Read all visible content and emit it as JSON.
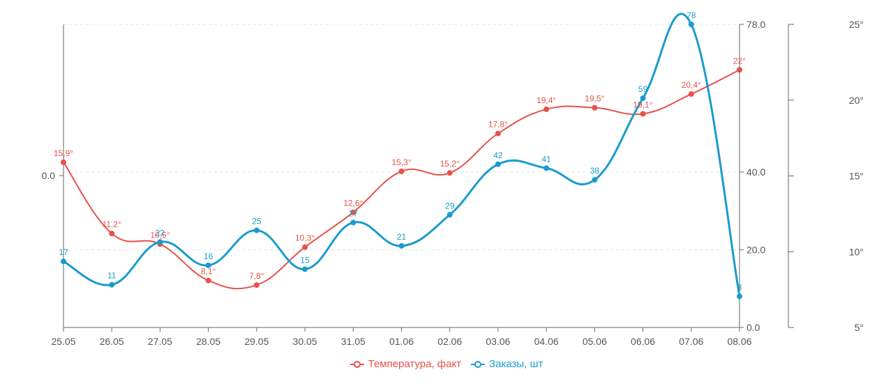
{
  "chart_data": {
    "type": "line",
    "categories": [
      "25.05",
      "26.05",
      "27.05",
      "28.05",
      "29.05",
      "30.05",
      "31.05",
      "01.06",
      "02.06",
      "03.06",
      "04.06",
      "05.06",
      "06.06",
      "07.06",
      "08.06"
    ],
    "series": [
      {
        "name": "Температура, факт",
        "color": "#e8504a",
        "axis": "temperature",
        "values": [
          15.9,
          11.2,
          10.5,
          8.1,
          7.8,
          10.3,
          12.6,
          15.3,
          15.2,
          17.8,
          19.4,
          19.5,
          19.1,
          20.4,
          22
        ],
        "labels": [
          "15,9°",
          "11,2°",
          "10,5°",
          "8,1°",
          "7,8°",
          "10,3°",
          "12,6°",
          "15,3°",
          "15,2°",
          "17,8°",
          "19,4°",
          "19,5°",
          "19,1°",
          "20,4°",
          "22°"
        ]
      },
      {
        "name": "Заказы, шт",
        "color": "#1a9bcf",
        "axis": "orders",
        "values": [
          17,
          11,
          22,
          16,
          25,
          15,
          27,
          21,
          29,
          42,
          41,
          38,
          59,
          78,
          8
        ],
        "labels": [
          "17",
          "11",
          "22",
          "16",
          "25",
          "15",
          "27",
          "21",
          "29",
          "42",
          "41",
          "38",
          "59",
          "78",
          "8"
        ]
      }
    ],
    "axes": {
      "left": {
        "ticks": [
          "0.0"
        ]
      },
      "orders": {
        "min": 0,
        "max": 78,
        "ticks": [
          "0.0",
          "20.0",
          "40.0",
          "78.0"
        ],
        "tick_values": [
          0,
          20,
          40,
          78
        ]
      },
      "temperature": {
        "min": 5,
        "max": 25,
        "ticks": [
          "5°",
          "10°",
          "15°",
          "20°",
          "25°"
        ],
        "tick_values": [
          5,
          10,
          15,
          20,
          25
        ]
      }
    },
    "grid": "dashed horizontal",
    "legend_position": "bottom-center"
  }
}
